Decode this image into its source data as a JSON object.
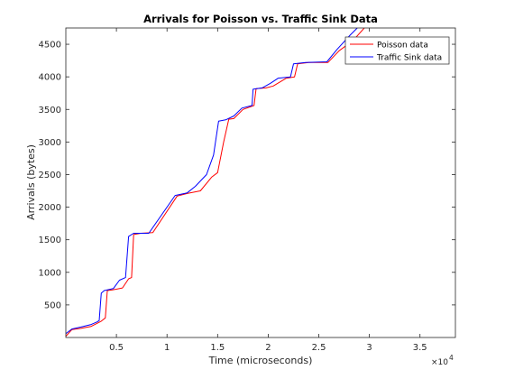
{
  "chart_data": {
    "type": "line",
    "title": "Arrivals for Poisson vs. Traffic Sink Data",
    "xlabel": "Time (microseconds)",
    "ylabel": "Arrivals (bytes)",
    "x_exponent_label": "×10",
    "x_exponent_power": "4",
    "xlim": [
      0,
      38500
    ],
    "ylim": [
      0,
      4750
    ],
    "xticks": [
      5000,
      10000,
      15000,
      20000,
      25000,
      30000,
      35000
    ],
    "xtick_labels": [
      "0.5",
      "1",
      "1.5",
      "2",
      "2.5",
      "3",
      "3.5"
    ],
    "yticks": [
      500,
      1000,
      1500,
      2000,
      2500,
      3000,
      3500,
      4000,
      4500
    ],
    "ytick_labels": [
      "500",
      "1000",
      "1500",
      "2000",
      "2500",
      "3000",
      "3500",
      "4000",
      "4500"
    ],
    "legend_position": "top-right",
    "grid": false,
    "series": [
      {
        "name": "Poisson data",
        "color": "#ff0000",
        "points": [
          [
            0,
            20
          ],
          [
            600,
            120
          ],
          [
            1500,
            140
          ],
          [
            2500,
            170
          ],
          [
            3500,
            250
          ],
          [
            3900,
            300
          ],
          [
            4100,
            720
          ],
          [
            4600,
            730
          ],
          [
            5600,
            760
          ],
          [
            6200,
            900
          ],
          [
            6500,
            920
          ],
          [
            6700,
            1580
          ],
          [
            7400,
            1600
          ],
          [
            8600,
            1610
          ],
          [
            11000,
            2170
          ],
          [
            12000,
            2210
          ],
          [
            13300,
            2250
          ],
          [
            14400,
            2460
          ],
          [
            15000,
            2530
          ],
          [
            15600,
            3000
          ],
          [
            16100,
            3350
          ],
          [
            16600,
            3360
          ],
          [
            17500,
            3500
          ],
          [
            18600,
            3560
          ],
          [
            18800,
            3820
          ],
          [
            19800,
            3830
          ],
          [
            20500,
            3860
          ],
          [
            21800,
            3980
          ],
          [
            22600,
            4000
          ],
          [
            22900,
            4200
          ],
          [
            24000,
            4220
          ],
          [
            25900,
            4220
          ],
          [
            27000,
            4400
          ],
          [
            28400,
            4560
          ],
          [
            29500,
            4750
          ]
        ]
      },
      {
        "name": "Traffic Sink data",
        "color": "#0000ff",
        "points": [
          [
            0,
            60
          ],
          [
            600,
            130
          ],
          [
            1500,
            160
          ],
          [
            2500,
            200
          ],
          [
            3100,
            240
          ],
          [
            3300,
            260
          ],
          [
            3500,
            680
          ],
          [
            3800,
            720
          ],
          [
            4700,
            750
          ],
          [
            5300,
            880
          ],
          [
            5900,
            920
          ],
          [
            6200,
            1550
          ],
          [
            6700,
            1600
          ],
          [
            8200,
            1600
          ],
          [
            10800,
            2180
          ],
          [
            12000,
            2220
          ],
          [
            12800,
            2320
          ],
          [
            13900,
            2500
          ],
          [
            14600,
            2800
          ],
          [
            15100,
            3320
          ],
          [
            15800,
            3340
          ],
          [
            16600,
            3400
          ],
          [
            17400,
            3520
          ],
          [
            18400,
            3560
          ],
          [
            18500,
            3810
          ],
          [
            19400,
            3830
          ],
          [
            20200,
            3900
          ],
          [
            21000,
            3980
          ],
          [
            22200,
            4000
          ],
          [
            22500,
            4200
          ],
          [
            23700,
            4220
          ],
          [
            25800,
            4230
          ],
          [
            26800,
            4420
          ],
          [
            28100,
            4640
          ],
          [
            28800,
            4750
          ]
        ]
      }
    ]
  }
}
